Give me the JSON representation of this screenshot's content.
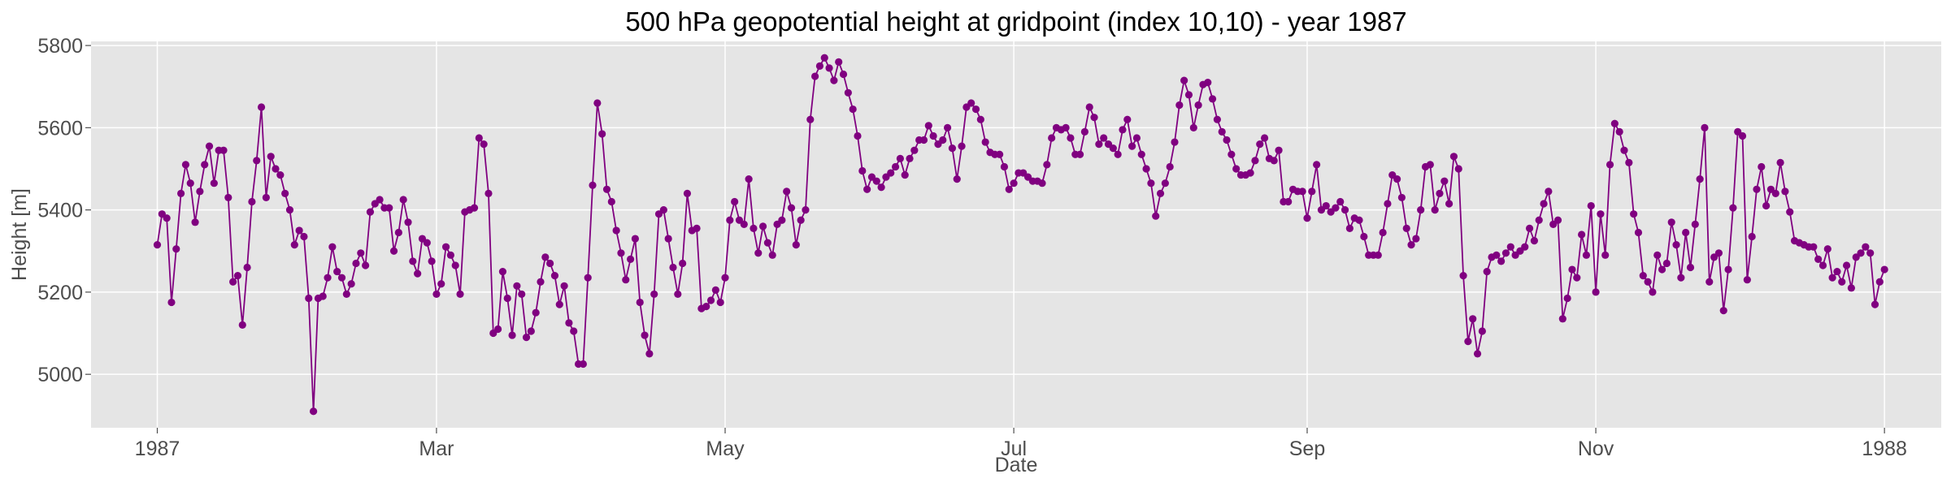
{
  "chart_data": {
    "type": "line",
    "title": "500 hPa geopotential height at gridpoint (index 10,10) - year 1987",
    "xlabel": "Date",
    "ylabel": "Height [m]",
    "x_ticks": [
      {
        "date": "1987-01-01",
        "label": "1987"
      },
      {
        "date": "1987-03-01",
        "label": "Mar"
      },
      {
        "date": "1987-05-01",
        "label": "May"
      },
      {
        "date": "1987-07-01",
        "label": "Jul"
      },
      {
        "date": "1987-09-01",
        "label": "Sep"
      },
      {
        "date": "1987-11-01",
        "label": "Nov"
      },
      {
        "date": "1988-01-01",
        "label": "1988"
      }
    ],
    "y_ticks": [
      5000,
      5200,
      5400,
      5600,
      5800
    ],
    "xlim": [
      "1986-12-18",
      "1988-01-13"
    ],
    "ylim": [
      4870,
      5810
    ],
    "grid": true,
    "line_color": "#800080",
    "marker": "circle",
    "background_color": "#e5e5e5",
    "series": [
      {
        "x_start": "1987-01-01",
        "x_step_days": 1,
        "values": [
          5315,
          5390,
          5380,
          5175,
          5305,
          5440,
          5510,
          5465,
          5370,
          5445,
          5510,
          5555,
          5465,
          5545,
          5545,
          5430,
          5225,
          5240,
          5120,
          5260,
          5420,
          5520,
          5650,
          5430,
          5530,
          5500,
          5485,
          5440,
          5400,
          5315,
          5350,
          5335,
          5185,
          4910,
          5185,
          5190,
          5235,
          5310,
          5250,
          5235,
          5195,
          5220,
          5270,
          5295,
          5265,
          5395,
          5415,
          5425,
          5405,
          5405,
          5300,
          5345,
          5425,
          5370,
          5275,
          5245,
          5330,
          5320,
          5275,
          5195,
          5220,
          5310,
          5290,
          5265,
          5195,
          5395,
          5400,
          5405,
          5575,
          5560,
          5440,
          5100,
          5110,
          5250,
          5185,
          5095,
          5215,
          5195,
          5090,
          5105,
          5150,
          5225,
          5285,
          5270,
          5240,
          5170,
          5215,
          5125,
          5105,
          5025,
          5025,
          5235,
          5460,
          5660,
          5585,
          5450,
          5420,
          5350,
          5295,
          5230,
          5280,
          5330,
          5175,
          5095,
          5050,
          5195,
          5390,
          5400,
          5330,
          5260,
          5195,
          5270,
          5440,
          5350,
          5355,
          5160,
          5165,
          5180,
          5205,
          5175,
          5235,
          5375,
          5420,
          5375,
          5365,
          5475,
          5355,
          5295,
          5360,
          5320,
          5290,
          5365,
          5375,
          5445,
          5405,
          5315,
          5375,
          5400,
          5620,
          5725,
          5750,
          5770,
          5745,
          5715,
          5760,
          5730,
          5685,
          5645,
          5580,
          5495,
          5450,
          5480,
          5470,
          5455,
          5480,
          5490,
          5505,
          5525,
          5485,
          5525,
          5545,
          5570,
          5570,
          5605,
          5580,
          5560,
          5570,
          5600,
          5550,
          5475,
          5555,
          5650,
          5660,
          5645,
          5620,
          5565,
          5540,
          5535,
          5535,
          5505,
          5450,
          5465,
          5490,
          5490,
          5480,
          5470,
          5470,
          5465,
          5510,
          5575,
          5600,
          5595,
          5600,
          5575,
          5535,
          5535,
          5590,
          5650,
          5625,
          5560,
          5575,
          5560,
          5550,
          5535,
          5595,
          5620,
          5555,
          5575,
          5535,
          5500,
          5465,
          5385,
          5440,
          5465,
          5505,
          5565,
          5655,
          5715,
          5680,
          5600,
          5655,
          5705,
          5710,
          5670,
          5620,
          5590,
          5570,
          5535,
          5500,
          5485,
          5485,
          5490,
          5520,
          5560,
          5575,
          5525,
          5520,
          5545,
          5420,
          5420,
          5450,
          5445,
          5445,
          5380,
          5445,
          5510,
          5400,
          5410,
          5395,
          5405,
          5420,
          5400,
          5355,
          5380,
          5375,
          5335,
          5290,
          5290,
          5290,
          5345,
          5415,
          5485,
          5475,
          5430,
          5355,
          5315,
          5330,
          5400,
          5505,
          5510,
          5400,
          5440,
          5470,
          5415,
          5530,
          5500,
          5240,
          5080,
          5135,
          5050,
          5105,
          5250,
          5285,
          5290,
          5275,
          5295,
          5310,
          5290,
          5300,
          5310,
          5355,
          5325,
          5375,
          5415,
          5445,
          5365,
          5375,
          5135,
          5185,
          5255,
          5235,
          5340,
          5290,
          5410,
          5200,
          5390,
          5290,
          5510,
          5610,
          5590,
          5545,
          5515,
          5390,
          5345,
          5240,
          5225,
          5200,
          5290,
          5255,
          5270,
          5370,
          5315,
          5235,
          5345,
          5260,
          5365,
          5475,
          5600,
          5225,
          5285,
          5295,
          5155,
          5255,
          5405,
          5590,
          5580,
          5230,
          5335,
          5450,
          5505,
          5410,
          5450,
          5440,
          5515,
          5445,
          5395,
          5325,
          5320,
          5315,
          5310,
          5310,
          5280,
          5265,
          5305,
          5235,
          5250,
          5225,
          5265,
          5210,
          5285,
          5295,
          5310,
          5295,
          5170,
          5225,
          5255
        ]
      }
    ]
  }
}
